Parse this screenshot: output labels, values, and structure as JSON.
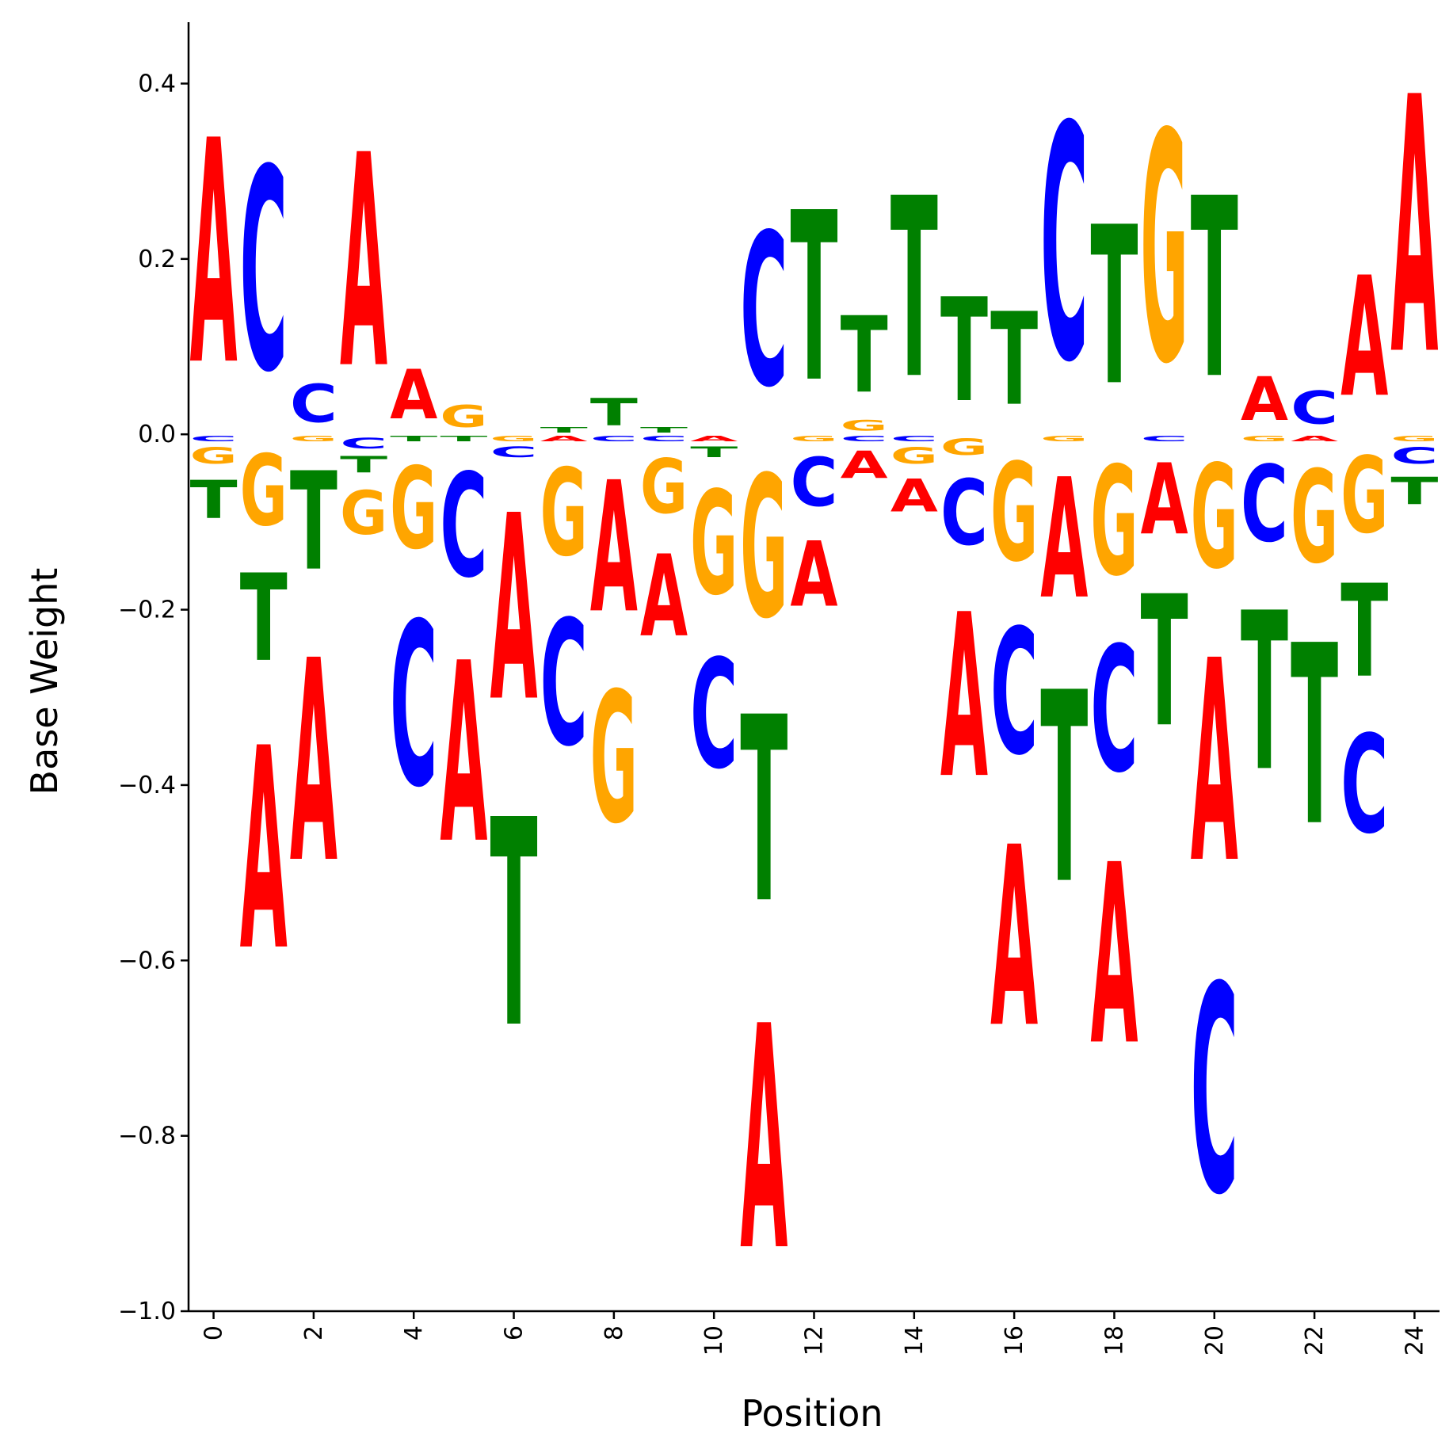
{
  "chart_data": {
    "type": "sequence-logo",
    "title": "",
    "xlabel": "Position",
    "ylabel": "Base Weight",
    "xlim": [
      -0.5,
      24.5
    ],
    "ylim": [
      -1.0,
      0.47
    ],
    "xticks": [
      0,
      2,
      4,
      6,
      8,
      10,
      12,
      14,
      16,
      18,
      20,
      22,
      24
    ],
    "xtick_labels": [
      "0",
      "2",
      "4",
      "6",
      "8",
      "10",
      "12",
      "14",
      "16",
      "18",
      "20",
      "22",
      "24"
    ],
    "yticks": [
      -1.0,
      -0.8,
      -0.6,
      -0.4,
      -0.2,
      0.0,
      0.2,
      0.4
    ],
    "ytick_labels": [
      "−1.0",
      "−0.8",
      "−0.6",
      "−0.4",
      "−0.2",
      "0.0",
      "0.2",
      "0.4"
    ],
    "colors": {
      "A": "#ff0000",
      "C": "#0000ff",
      "G": "#ffa500",
      "T": "#008000"
    },
    "positions": [
      {
        "pos": 0,
        "A": 0.41,
        "C": -0.01,
        "G": -0.03,
        "T": -0.07
      },
      {
        "pos": 1,
        "A": -0.37,
        "C": 0.37,
        "G": -0.13,
        "T": -0.16
      },
      {
        "pos": 2,
        "A": -0.37,
        "C": 0.07,
        "G": -0.01,
        "T": -0.18
      },
      {
        "pos": 3,
        "A": 0.39,
        "C": -0.02,
        "G": -0.08,
        "T": -0.03
      },
      {
        "pos": 4,
        "A": 0.09,
        "C": -0.3,
        "G": -0.15,
        "T": -0.01
      },
      {
        "pos": 5,
        "A": -0.33,
        "C": -0.19,
        "G": 0.04,
        "T": -0.01
      },
      {
        "pos": 6,
        "A": -0.34,
        "C": -0.02,
        "G": -0.01,
        "T": -0.38
      },
      {
        "pos": 7,
        "A": -0.01,
        "C": -0.23,
        "G": -0.16,
        "T": 0.01
      },
      {
        "pos": 8,
        "A": -0.24,
        "C": -0.01,
        "G": -0.24,
        "T": 0.05
      },
      {
        "pos": 9,
        "A": -0.15,
        "C": -0.01,
        "G": -0.1,
        "T": 0.01
      },
      {
        "pos": 10,
        "A": -0.01,
        "C": -0.2,
        "G": -0.19,
        "T": -0.02
      },
      {
        "pos": 11,
        "A": -0.41,
        "C": 0.28,
        "G": -0.26,
        "T": -0.34
      },
      {
        "pos": 12,
        "A": -0.12,
        "C": -0.09,
        "G": -0.01,
        "T": 0.31
      },
      {
        "pos": 13,
        "A": -0.05,
        "C": -0.01,
        "G": 0.02,
        "T": 0.14
      },
      {
        "pos": 14,
        "A": -0.06,
        "C": -0.01,
        "G": -0.03,
        "T": 0.33
      },
      {
        "pos": 15,
        "A": -0.3,
        "C": -0.12,
        "G": -0.03,
        "T": 0.19
      },
      {
        "pos": 16,
        "A": -0.33,
        "C": -0.23,
        "G": -0.18,
        "T": 0.17
      },
      {
        "pos": 17,
        "A": -0.22,
        "C": 0.43,
        "G": -0.01,
        "T": -0.35
      },
      {
        "pos": 18,
        "A": -0.33,
        "C": -0.23,
        "G": -0.2,
        "T": 0.29
      },
      {
        "pos": 19,
        "A": -0.13,
        "C": -0.01,
        "G": 0.42,
        "T": -0.24
      },
      {
        "pos": 20,
        "A": -0.37,
        "C": -0.38,
        "G": -0.19,
        "T": 0.33
      },
      {
        "pos": 21,
        "A": 0.08,
        "C": -0.14,
        "G": -0.01,
        "T": -0.29
      },
      {
        "pos": 22,
        "A": -0.01,
        "C": 0.06,
        "G": -0.17,
        "T": -0.33
      },
      {
        "pos": 23,
        "A": 0.22,
        "C": -0.18,
        "G": -0.14,
        "T": -0.17
      },
      {
        "pos": 24,
        "A": 0.47,
        "C": -0.03,
        "G": -0.01,
        "T": -0.05
      }
    ]
  }
}
